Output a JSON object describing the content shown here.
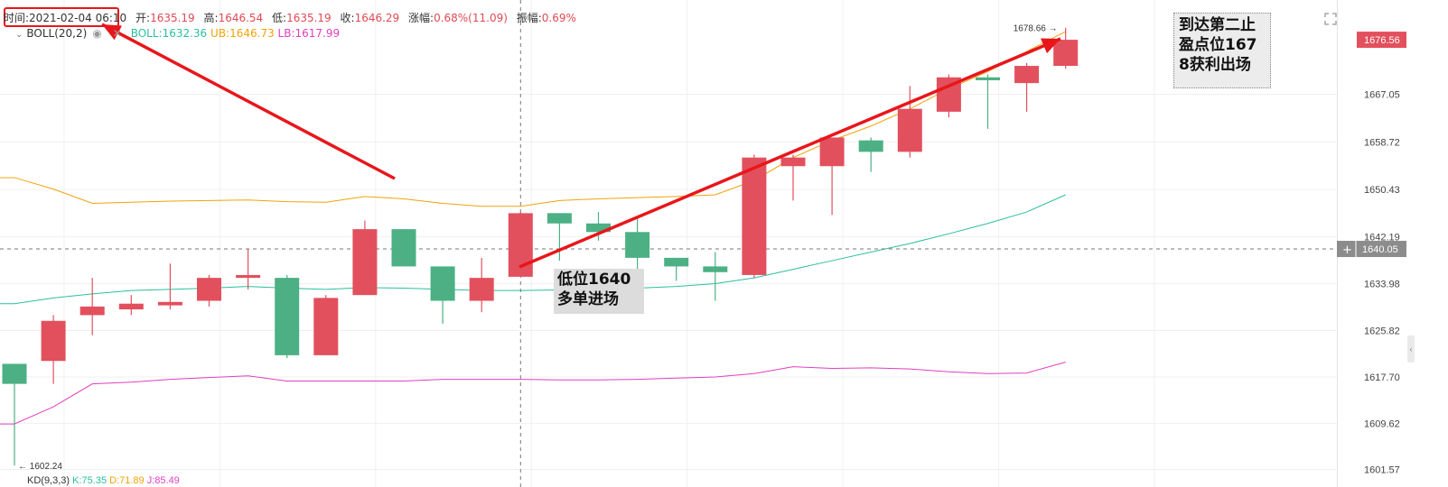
{
  "info": {
    "time_label": "时间:",
    "time_value": "2021-02-04 06:10",
    "open_label": "开:",
    "open_value": "1635.19",
    "high_label": "高:",
    "high_value": "1646.54",
    "low_label": "低:",
    "low_value": "1635.19",
    "close_label": "收:",
    "close_value": "1646.29",
    "change_label": "涨幅:",
    "change_value": "0.68%(11.09)",
    "amplitude_label": "振幅:",
    "amplitude_value": "0.69%"
  },
  "boll": {
    "name": "BOLL(20,2)",
    "mid_label": "BOLL:1632.36",
    "ub_label": "UB:1646.73",
    "lb_label": "LB:1617.99"
  },
  "bottom_indicator": {
    "name": "KD(9,3,3)",
    "k": "K:75.35",
    "d": "D:71.89",
    "j": "J:85.49"
  },
  "notes": {
    "entry_line1": "低位1640",
    "entry_line2": "多单进场",
    "exit_line1": "到达第二止",
    "exit_line2": "盈点位167",
    "exit_line3": "8获利出场"
  },
  "chart_data": {
    "type": "candlestick",
    "y_axis_ticks": [
      1667.05,
      1658.72,
      1650.43,
      1642.19,
      1633.98,
      1625.82,
      1617.7,
      1609.62,
      1601.57
    ],
    "ylim": [
      1598.5,
      1683.5
    ],
    "current_price": "1676.56",
    "crosshair_price": "1640.05",
    "max_label": "1678.66",
    "min_label": "1602.24",
    "candles": [
      {
        "o": 1620.0,
        "h": 1620.0,
        "l": 1602.24,
        "c": 1616.5
      },
      {
        "o": 1620.5,
        "h": 1628.5,
        "l": 1616.5,
        "c": 1627.5
      },
      {
        "o": 1628.5,
        "h": 1635.0,
        "l": 1625.0,
        "c": 1630.0
      },
      {
        "o": 1629.5,
        "h": 1632.0,
        "l": 1628.5,
        "c": 1630.5
      },
      {
        "o": 1630.2,
        "h": 1637.5,
        "l": 1629.5,
        "c": 1630.8
      },
      {
        "o": 1631.0,
        "h": 1635.5,
        "l": 1630.0,
        "c": 1635.0
      },
      {
        "o": 1635.0,
        "h": 1640.0,
        "l": 1633.0,
        "c": 1635.5
      },
      {
        "o": 1635.0,
        "h": 1635.5,
        "l": 1621.0,
        "c": 1621.5
      },
      {
        "o": 1621.5,
        "h": 1632.0,
        "l": 1621.5,
        "c": 1631.5
      },
      {
        "o": 1632.0,
        "h": 1645.0,
        "l": 1632.0,
        "c": 1643.5
      },
      {
        "o": 1643.5,
        "h": 1643.5,
        "l": 1637.0,
        "c": 1637.0
      },
      {
        "o": 1637.0,
        "h": 1637.0,
        "l": 1627.0,
        "c": 1631.0
      },
      {
        "o": 1631.0,
        "h": 1638.5,
        "l": 1629.0,
        "c": 1635.0
      },
      {
        "o": 1635.19,
        "h": 1646.54,
        "l": 1635.19,
        "c": 1646.29
      },
      {
        "o": 1646.3,
        "h": 1646.3,
        "l": 1638.0,
        "c": 1644.5
      },
      {
        "o": 1644.5,
        "h": 1646.5,
        "l": 1641.5,
        "c": 1643.0
      },
      {
        "o": 1643.0,
        "h": 1645.5,
        "l": 1636.5,
        "c": 1638.5
      },
      {
        "o": 1638.5,
        "h": 1638.5,
        "l": 1634.5,
        "c": 1637.0
      },
      {
        "o": 1637.0,
        "h": 1639.5,
        "l": 1631.0,
        "c": 1636.0
      },
      {
        "o": 1635.5,
        "h": 1656.5,
        "l": 1635.0,
        "c": 1656.0
      },
      {
        "o": 1654.5,
        "h": 1656.5,
        "l": 1648.5,
        "c": 1656.0
      },
      {
        "o": 1654.5,
        "h": 1659.5,
        "l": 1646.0,
        "c": 1659.5
      },
      {
        "o": 1659.0,
        "h": 1659.5,
        "l": 1653.5,
        "c": 1657.0
      },
      {
        "o": 1657.0,
        "h": 1668.5,
        "l": 1656.0,
        "c": 1664.5
      },
      {
        "o": 1664.0,
        "h": 1670.5,
        "l": 1663.0,
        "c": 1670.0
      },
      {
        "o": 1670.0,
        "h": 1670.5,
        "l": 1661.0,
        "c": 1669.5
      },
      {
        "o": 1669.0,
        "h": 1672.5,
        "l": 1664.0,
        "c": 1672.0
      },
      {
        "o": 1672.0,
        "h": 1678.66,
        "l": 1671.5,
        "c": 1676.56
      }
    ],
    "boll_ub": [
      1652.5,
      1650.5,
      1648.0,
      1648.2,
      1648.4,
      1648.5,
      1648.6,
      1648.3,
      1648.2,
      1649.2,
      1648.8,
      1648.0,
      1647.5,
      1647.5,
      1648.5,
      1648.8,
      1649.0,
      1649.2,
      1649.5,
      1652.0,
      1656.0,
      1659.0,
      1661.5,
      1664.5,
      1668.0,
      1671.0,
      1674.5,
      1678.0
    ],
    "boll_mid": [
      1630.5,
      1631.5,
      1632.2,
      1632.8,
      1633.0,
      1633.2,
      1633.5,
      1633.2,
      1633.0,
      1633.3,
      1633.2,
      1633.0,
      1632.8,
      1632.8,
      1632.9,
      1633.0,
      1633.2,
      1633.5,
      1634.0,
      1635.0,
      1636.5,
      1638.0,
      1639.5,
      1641.0,
      1642.7,
      1644.5,
      1646.5,
      1649.5
    ],
    "boll_lb": [
      1609.5,
      1612.5,
      1616.5,
      1616.8,
      1617.3,
      1617.6,
      1617.9,
      1617.0,
      1617.0,
      1617.0,
      1617.0,
      1617.3,
      1617.3,
      1617.3,
      1617.2,
      1617.2,
      1617.3,
      1617.5,
      1617.7,
      1618.3,
      1619.5,
      1619.2,
      1619.3,
      1619.1,
      1618.6,
      1618.3,
      1618.4,
      1620.3
    ]
  },
  "colors": {
    "up": "#e2505d",
    "down": "#4cb084",
    "ub": "#f0a30a",
    "mid": "#2bbf9e",
    "lb": "#e03fc0",
    "arrow": "#e8161b",
    "grid": "#f0f0f0"
  },
  "icons": {
    "expand": "expand-icon",
    "eye": "eye-icon",
    "close": "close-icon",
    "chevron": "chevron-down-icon"
  }
}
